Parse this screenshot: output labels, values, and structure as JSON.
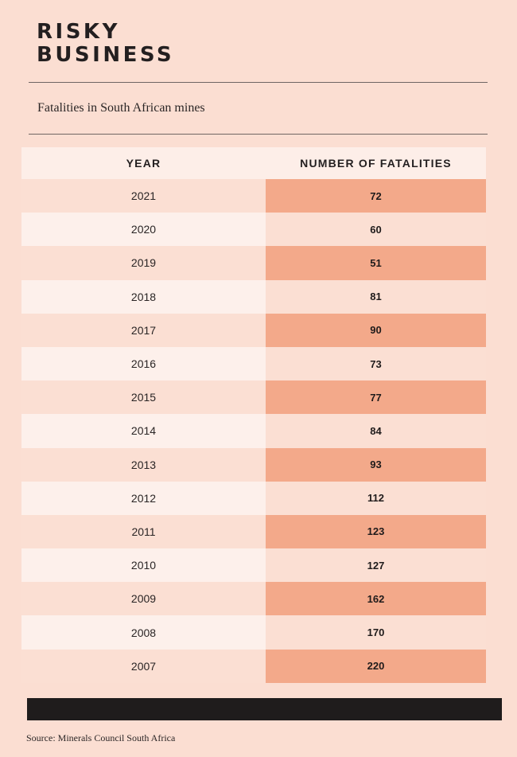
{
  "title_line1": "RISKY",
  "title_line2": "BUSINESS",
  "subtitle": "Fatalities in South African mines",
  "source": "Source: Minerals Council South Africa",
  "colors": {
    "background": "#fbded2",
    "highlight": "#f3a98a",
    "light_row": "#fdf0eb",
    "footer_bar": "#1f1c1c"
  },
  "chart_data": {
    "type": "table",
    "columns": [
      "YEAR",
      "NUMBER OF FATALITIES"
    ],
    "x": [
      "2021",
      "2020",
      "2019",
      "2018",
      "2017",
      "2016",
      "2015",
      "2014",
      "2013",
      "2012",
      "2011",
      "2010",
      "2009",
      "2008",
      "2007"
    ],
    "values": [
      72,
      60,
      51,
      81,
      90,
      73,
      77,
      84,
      93,
      112,
      123,
      127,
      162,
      170,
      220
    ]
  }
}
